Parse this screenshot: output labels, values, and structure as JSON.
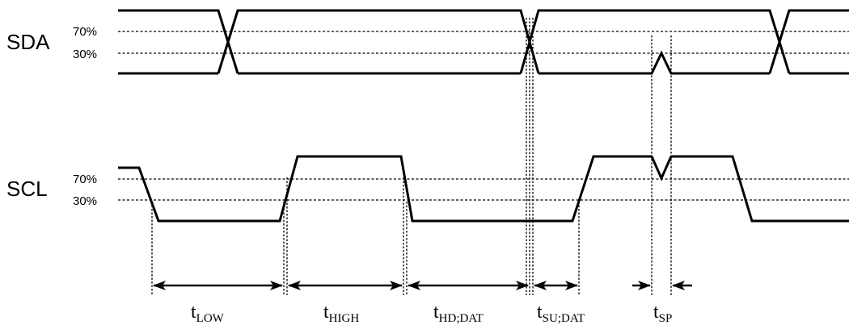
{
  "signals": {
    "sda": {
      "name": "SDA",
      "level_high_label": "70%",
      "level_low_label": "30%"
    },
    "scl": {
      "name": "SCL",
      "level_high_label": "70%",
      "level_low_label": "30%"
    }
  },
  "timing_parameters": [
    {
      "id": "low",
      "main": "t",
      "sub": "LOW"
    },
    {
      "id": "high",
      "main": "t",
      "sub": "HIGH"
    },
    {
      "id": "hd_dat",
      "main": "t",
      "sub": "HD;DAT"
    },
    {
      "id": "su_dat",
      "main": "t",
      "sub": "SU;DAT"
    },
    {
      "id": "sp",
      "main": "t",
      "sub": "SP"
    }
  ]
}
